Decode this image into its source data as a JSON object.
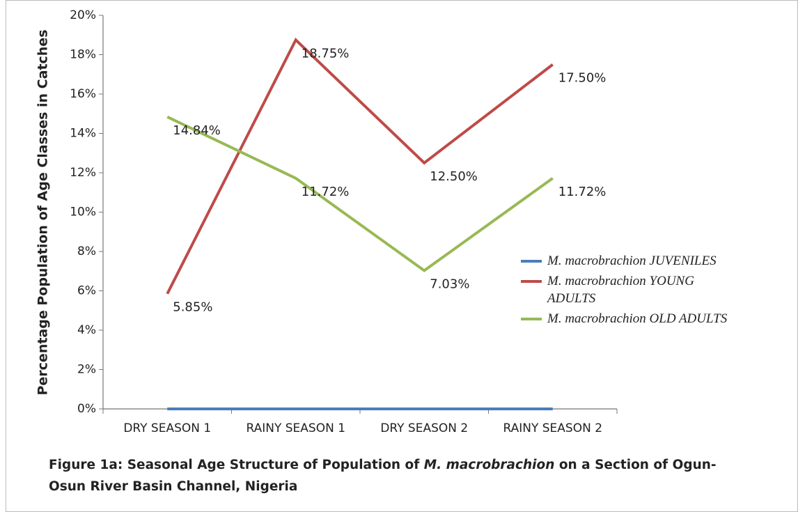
{
  "chart_data": {
    "type": "line",
    "y_label": "Percentage Population of Age Classes in Catches",
    "categories": [
      "DRY SEASON 1",
      "RAINY SEASON 1",
      "DRY SEASON 2",
      "RAINY SEASON 2"
    ],
    "series": [
      {
        "name": "M. macrobrachion JUVENILES",
        "color": "#4a7ebb",
        "values": [
          0,
          0,
          0,
          0
        ]
      },
      {
        "name": "M. macrobrachion YOUNG ADULTS",
        "color": "#be4b48",
        "values": [
          5.85,
          18.75,
          12.5,
          17.5
        ],
        "value_labels": [
          "5.85%",
          "18.75%",
          "12.50%",
          "17.50%"
        ]
      },
      {
        "name": "M. macrobrachion OLD ADULTS",
        "color": "#98b954",
        "values": [
          14.84,
          11.72,
          7.03,
          11.72
        ],
        "value_labels": [
          "14.84%",
          "11.72%",
          "7.03%",
          "11.72%"
        ]
      }
    ],
    "ylim": [
      0,
      20
    ],
    "yticks": [
      {
        "value": 0,
        "label": "0%"
      },
      {
        "value": 2,
        "label": "2%"
      },
      {
        "value": 4,
        "label": "4%"
      },
      {
        "value": 6,
        "label": "6%"
      },
      {
        "value": 8,
        "label": "8%"
      },
      {
        "value": 10,
        "label": "10%"
      },
      {
        "value": 12,
        "label": "12%"
      },
      {
        "value": 14,
        "label": "14%"
      },
      {
        "value": 16,
        "label": "16%"
      },
      {
        "value": 18,
        "label": "18%"
      },
      {
        "value": 20,
        "label": "20%"
      }
    ],
    "grid": false,
    "legend": "right",
    "caption": [
      "Figure 1a: Seasonal Age Structure of Population of ",
      "M. macrobrachion",
      " on a Section of Ogun-Osun River Basin Channel, Nigeria"
    ]
  }
}
